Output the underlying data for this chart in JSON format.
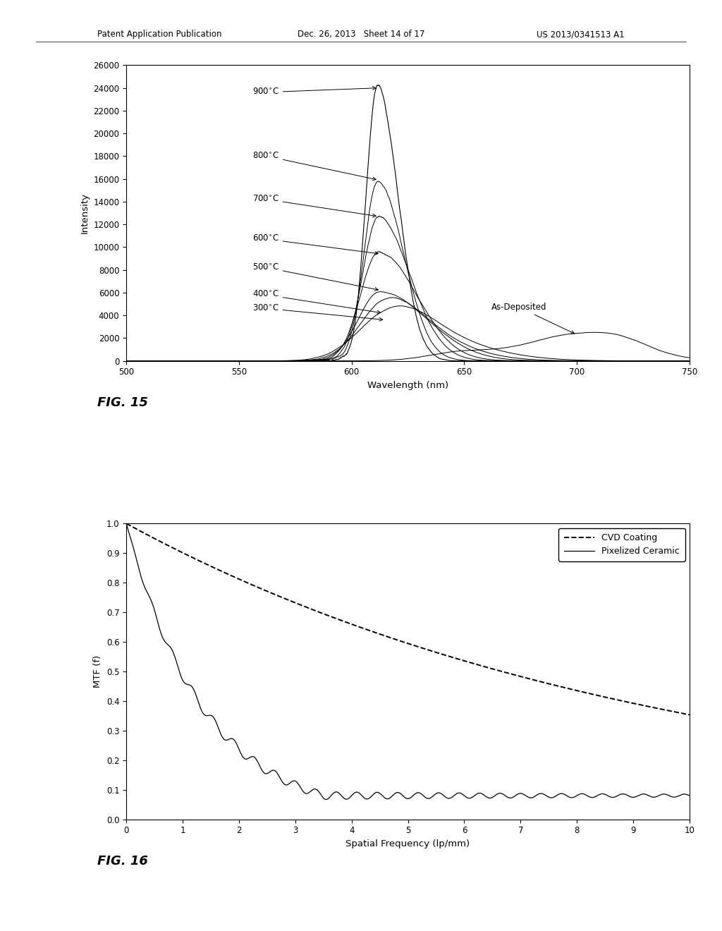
{
  "fig15": {
    "xlabel": "Wavelength (nm)",
    "ylabel": "Intensity",
    "xlim": [
      500,
      750
    ],
    "ylim": [
      0,
      26000
    ],
    "yticks": [
      0,
      2000,
      4000,
      6000,
      8000,
      10000,
      12000,
      14000,
      16000,
      18000,
      20000,
      22000,
      24000,
      26000
    ],
    "xticks": [
      500,
      550,
      600,
      650,
      700,
      750
    ],
    "fig_label": "FIG. 15"
  },
  "fig16": {
    "xlabel": "Spatial Frequency (lp/mm)",
    "ylabel": "MTF (f)",
    "xlim": [
      0,
      10
    ],
    "ylim": [
      0.0,
      1.0
    ],
    "yticks": [
      0.0,
      0.1,
      0.2,
      0.3,
      0.4,
      0.5,
      0.6,
      0.7,
      0.8,
      0.9,
      1.0
    ],
    "xticks": [
      0,
      1,
      2,
      3,
      4,
      5,
      6,
      7,
      8,
      9,
      10
    ],
    "cvd_label": "CVD Coating",
    "ceramic_label": "Pixelized Ceramic",
    "fig_label": "FIG. 16"
  },
  "header_left": "Patent Application Publication",
  "header_center": "Dec. 26, 2013   Sheet 14 of 17",
  "header_right": "US 2013/0341513 A1"
}
